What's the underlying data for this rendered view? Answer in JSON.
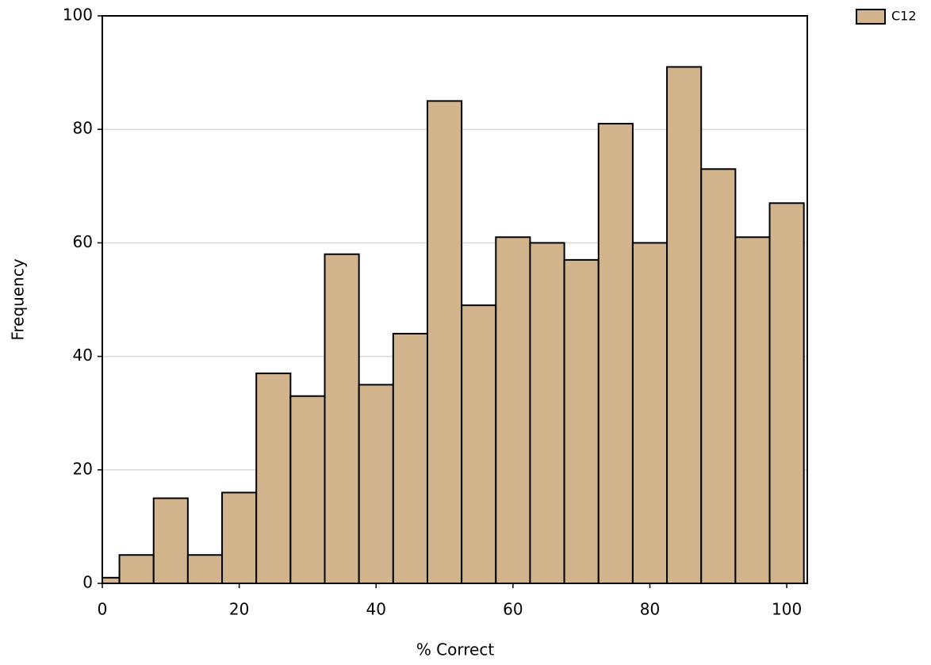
{
  "chart_data": {
    "type": "histogram",
    "x_label": "% Correct",
    "y_label": "Frequency",
    "bins": [
      -2.5,
      2.5,
      7.5,
      12.5,
      17.5,
      22.5,
      27.5,
      32.5,
      37.5,
      42.5,
      47.5,
      52.5,
      57.5,
      62.5,
      67.5,
      72.5,
      77.5,
      82.5,
      87.5,
      92.5,
      97.5,
      102.5
    ],
    "series": [
      {
        "name": "C12",
        "color": "#d2b48c",
        "values": [
          1,
          5,
          15,
          5,
          16,
          37,
          33,
          58,
          35,
          44,
          85,
          49,
          61,
          60,
          57,
          81,
          60,
          91,
          73,
          61,
          67
        ]
      }
    ],
    "xlim": [
      0,
      103
    ],
    "xticks": [
      0,
      20,
      40,
      60,
      80,
      100
    ],
    "ylim": [
      0,
      100
    ],
    "yticks": [
      0,
      20,
      40,
      60,
      80,
      100
    ],
    "grid": true,
    "legend": "top-right"
  }
}
